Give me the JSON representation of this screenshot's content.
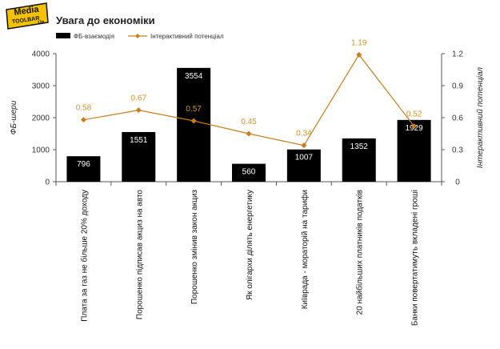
{
  "logo": {
    "line1": "Media",
    "line2": "TOOLBAR",
    "line3": "Ua",
    "badge_color": "#f2c200"
  },
  "chart_data": {
    "type": "bar",
    "title": "Увага до економіки",
    "categories": [
      "Плата за газ не більше 20% доходу",
      "Порошенко підписав акциз на авто",
      "Порошенко змінив закон акциз",
      "Як олігархи ділять енергетику",
      "Київрада - мораторій на тарифи",
      "20 найбільших платників податків",
      "Банки повертатимуть вкладені гроші"
    ],
    "series": [
      {
        "name": "ФБ-взаємодія",
        "values": [
          796,
          1551,
          3554,
          560,
          1007,
          1352,
          1929
        ],
        "color": "#000000",
        "kind": "bar",
        "axis": "left"
      },
      {
        "name": "Інтерактивний потенціал",
        "values": [
          0.58,
          0.67,
          0.57,
          0.45,
          0.34,
          1.19,
          0.52
        ],
        "color": "#c97d1e",
        "kind": "line",
        "axis": "right"
      }
    ],
    "ylabel": "ФБ-шери",
    "y2label": "Інтерактивний потенціал",
    "ylim": [
      0,
      4000
    ],
    "y2lim": [
      0,
      1.2
    ],
    "yticks": [
      "0",
      "1000",
      "2000",
      "3000",
      "4000"
    ],
    "y2ticks": [
      "0",
      "0.3",
      "0.6",
      "0.9",
      "1.2"
    ],
    "line_labels": [
      "0.58",
      "0.67",
      "0.57",
      "0.45",
      "0.34",
      "1.19",
      "0.52"
    ],
    "legend_position": "top-left",
    "grid": false
  }
}
